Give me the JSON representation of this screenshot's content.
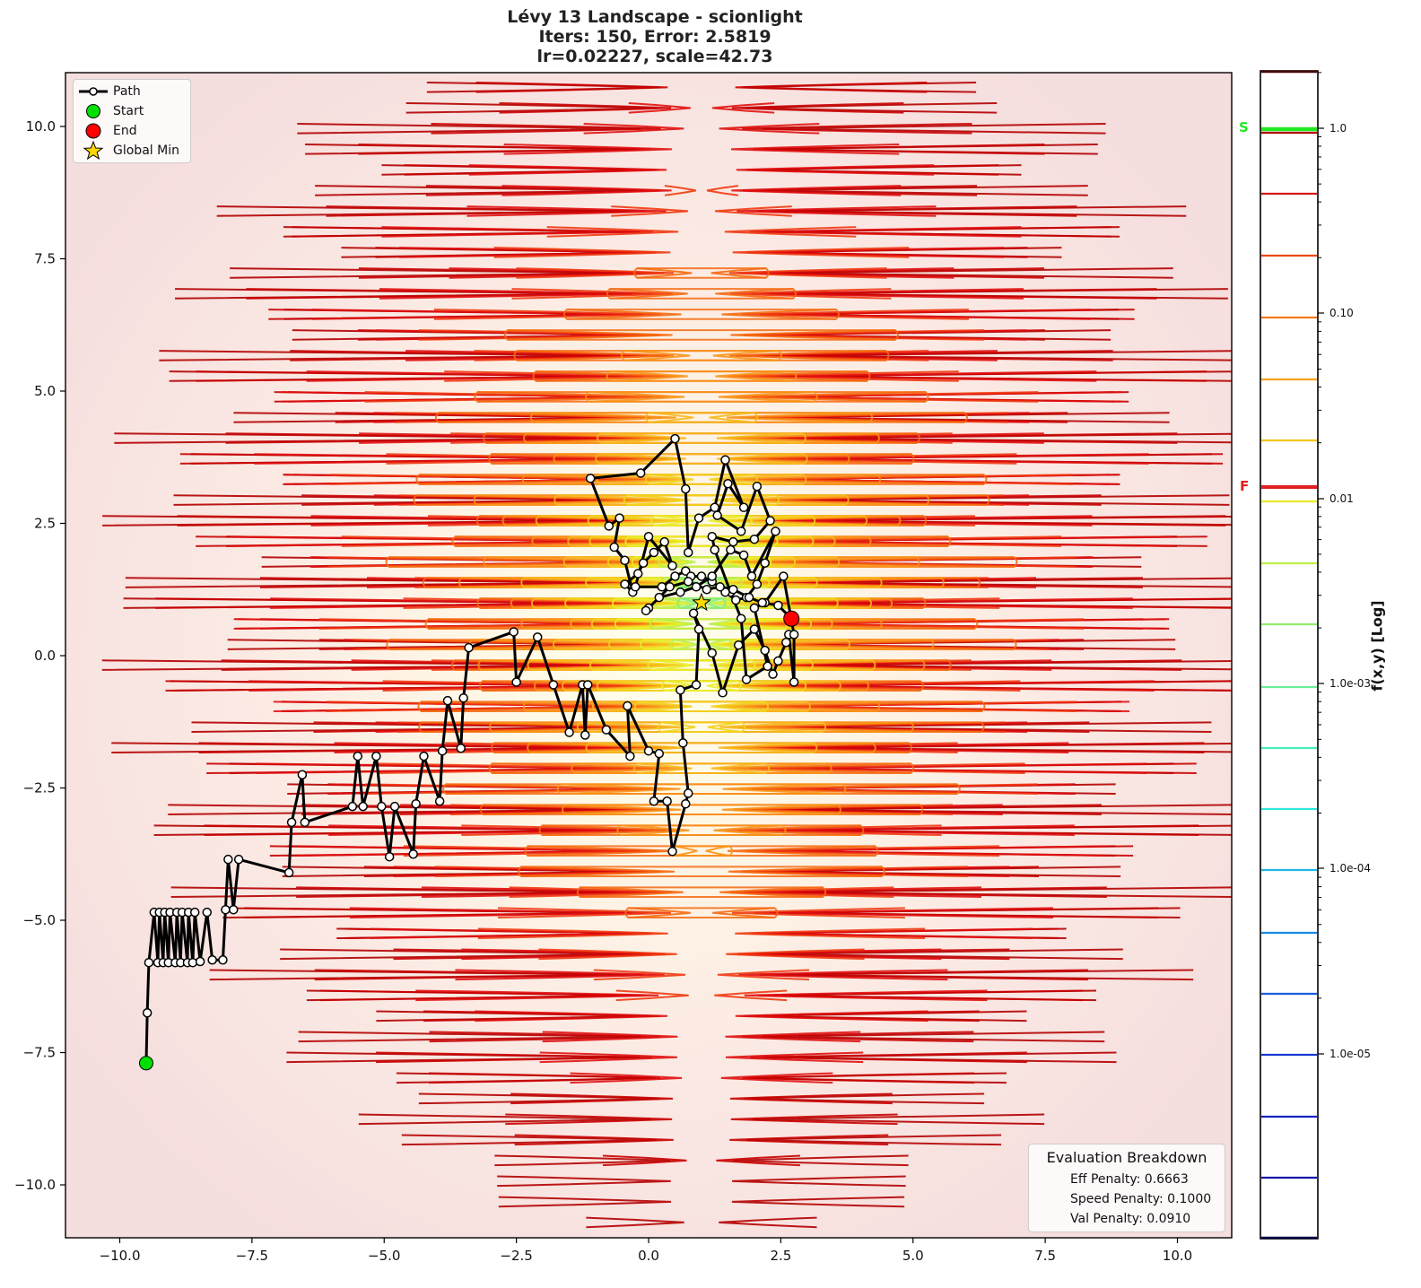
{
  "title": {
    "line1": "Lévy 13 Landscape - scionlight",
    "line2": "Iters: 150, Error: 2.5819",
    "line3": "lr=0.02227, scale=42.73"
  },
  "legend": {
    "items": [
      {
        "label": "Path",
        "symbol": "line-with-open-circle"
      },
      {
        "label": "Start",
        "symbol": "green-circle"
      },
      {
        "label": "End",
        "symbol": "red-circle"
      },
      {
        "label": "Global Min",
        "symbol": "yellow-star"
      }
    ]
  },
  "evaluation": {
    "header": "Evaluation Breakdown",
    "eff": "Eff Penalty: 0.6663",
    "speed": "Speed Penalty: 0.1000",
    "val": "Val Penalty: 0.0910"
  },
  "colorbar": {
    "label": "f(x,y) [Log]",
    "ticks": [
      "1.0",
      "0.10",
      "0.01",
      "1.0e-03",
      "1.0e-04",
      "1.0e-05"
    ],
    "start_marker": {
      "label": "S",
      "color": "#22e822"
    },
    "final_marker": {
      "label": "F",
      "color": "#e02020"
    }
  },
  "colors": {
    "path": "#000000",
    "start": "#00e000",
    "end": "#ff0000",
    "global_min": "#ffd700",
    "background_edge": "#f7e4e4",
    "background_center": "#ffffee"
  },
  "chart_data": {
    "type": "contour+line",
    "title": "Lévy 13 Landscape - scionlight\nIters: 150, Error: 2.5819\nlr=0.02227, scale=42.73",
    "xlabel": "",
    "ylabel": "",
    "xlim": [
      -11,
      11
    ],
    "ylim": [
      -11,
      11
    ],
    "xticks": [
      -10.0,
      -7.5,
      -5.0,
      -2.5,
      0.0,
      2.5,
      5.0,
      7.5,
      10.0
    ],
    "yticks": [
      -10.0,
      -7.5,
      -5.0,
      -2.5,
      0.0,
      2.5,
      5.0,
      7.5,
      10.0
    ],
    "colorbar_scale": "log",
    "colorbar_label": "f(x,y) [Log]",
    "colorbar_range": [
      1e-06,
      2.0
    ],
    "start_point": [
      -9.5,
      -7.7
    ],
    "end_point": [
      2.7,
      0.7
    ],
    "global_min": [
      1.0,
      1.0
    ],
    "start_value_on_colorbar": 1.0,
    "final_value_on_colorbar": 0.012,
    "iterations": 150,
    "error": 2.5819,
    "lr": 0.02227,
    "scale": 42.73,
    "penalties": {
      "eff": 0.6663,
      "speed": 0.1,
      "val": 0.091
    },
    "path": [
      [
        -9.5,
        -7.7
      ],
      [
        -9.48,
        -6.75
      ],
      [
        -9.45,
        -5.8
      ],
      [
        -9.35,
        -4.85
      ],
      [
        -9.28,
        -5.8
      ],
      [
        -9.25,
        -4.85
      ],
      [
        -9.18,
        -5.8
      ],
      [
        -9.15,
        -4.85
      ],
      [
        -9.08,
        -5.8
      ],
      [
        -9.05,
        -4.85
      ],
      [
        -8.95,
        -5.8
      ],
      [
        -8.92,
        -4.85
      ],
      [
        -8.85,
        -5.8
      ],
      [
        -8.82,
        -4.85
      ],
      [
        -8.72,
        -5.8
      ],
      [
        -8.7,
        -4.85
      ],
      [
        -8.62,
        -5.8
      ],
      [
        -8.58,
        -4.85
      ],
      [
        -8.48,
        -5.78
      ],
      [
        -8.35,
        -4.85
      ],
      [
        -8.25,
        -5.75
      ],
      [
        -8.05,
        -5.75
      ],
      [
        -8.0,
        -4.8
      ],
      [
        -7.95,
        -3.85
      ],
      [
        -7.85,
        -4.8
      ],
      [
        -7.75,
        -3.85
      ],
      [
        -6.8,
        -4.1
      ],
      [
        -6.75,
        -3.15
      ],
      [
        -6.55,
        -2.25
      ],
      [
        -6.5,
        -3.15
      ],
      [
        -5.6,
        -2.85
      ],
      [
        -5.5,
        -1.9
      ],
      [
        -5.4,
        -2.85
      ],
      [
        -5.15,
        -1.9
      ],
      [
        -5.05,
        -2.85
      ],
      [
        -4.9,
        -3.8
      ],
      [
        -4.8,
        -2.85
      ],
      [
        -4.45,
        -3.75
      ],
      [
        -4.4,
        -2.8
      ],
      [
        -4.25,
        -1.9
      ],
      [
        -3.95,
        -2.75
      ],
      [
        -3.9,
        -1.8
      ],
      [
        -3.8,
        -0.85
      ],
      [
        -3.55,
        -1.75
      ],
      [
        -3.5,
        -0.8
      ],
      [
        -3.4,
        0.15
      ],
      [
        -2.55,
        0.45
      ],
      [
        -2.5,
        -0.5
      ],
      [
        -2.1,
        0.35
      ],
      [
        -1.8,
        -0.55
      ],
      [
        -1.5,
        -1.45
      ],
      [
        -1.25,
        -0.55
      ],
      [
        -1.2,
        -1.5
      ],
      [
        -1.15,
        -0.55
      ],
      [
        -0.8,
        -1.4
      ],
      [
        -0.35,
        -1.9
      ],
      [
        -0.4,
        -0.95
      ],
      [
        0.0,
        -1.8
      ],
      [
        0.2,
        -1.85
      ],
      [
        0.1,
        -2.75
      ],
      [
        0.35,
        -2.75
      ],
      [
        0.45,
        -3.7
      ],
      [
        0.7,
        -2.8
      ],
      [
        0.75,
        -2.6
      ],
      [
        0.65,
        -1.65
      ],
      [
        0.6,
        -0.65
      ],
      [
        0.9,
        -0.55
      ],
      [
        0.95,
        0.5
      ],
      [
        0.85,
        0.8
      ],
      [
        1.2,
        0.05
      ],
      [
        1.4,
        -0.7
      ],
      [
        1.7,
        0.2
      ],
      [
        2.0,
        0.5
      ],
      [
        2.2,
        0.1
      ],
      [
        2.35,
        -0.35
      ],
      [
        2.45,
        -0.1
      ],
      [
        2.6,
        0.25
      ],
      [
        2.65,
        0.4
      ],
      [
        2.75,
        -0.5
      ],
      [
        2.75,
        0.4
      ],
      [
        2.55,
        1.5
      ],
      [
        2.2,
        1.0
      ],
      [
        2.0,
        0.9
      ],
      [
        2.25,
        -0.2
      ],
      [
        1.85,
        -0.45
      ],
      [
        1.75,
        0.7
      ],
      [
        1.55,
        1.2
      ],
      [
        1.25,
        2.0
      ],
      [
        1.2,
        2.25
      ],
      [
        1.6,
        2.15
      ],
      [
        2.0,
        2.2
      ],
      [
        2.3,
        2.55
      ],
      [
        2.05,
        3.2
      ],
      [
        1.75,
        2.35
      ],
      [
        1.3,
        2.65
      ],
      [
        1.5,
        3.25
      ],
      [
        1.8,
        2.8
      ],
      [
        1.45,
        3.7
      ],
      [
        1.25,
        2.8
      ],
      [
        0.95,
        2.6
      ],
      [
        0.75,
        1.95
      ],
      [
        0.7,
        3.15
      ],
      [
        0.5,
        4.1
      ],
      [
        -0.15,
        3.45
      ],
      [
        -1.1,
        3.35
      ],
      [
        -0.75,
        2.45
      ],
      [
        -0.55,
        2.6
      ],
      [
        -0.65,
        2.05
      ],
      [
        -0.45,
        1.8
      ],
      [
        -0.3,
        1.2
      ],
      [
        -0.45,
        1.35
      ],
      [
        -0.2,
        1.55
      ],
      [
        -0.1,
        1.75
      ],
      [
        0.1,
        1.95
      ],
      [
        0.3,
        2.15
      ],
      [
        0.45,
        1.7
      ],
      [
        0.0,
        2.25
      ],
      [
        -0.25,
        1.3
      ],
      [
        0.25,
        1.3
      ],
      [
        0.5,
        1.5
      ],
      [
        0.7,
        1.6
      ],
      [
        0.8,
        1.5
      ],
      [
        1.0,
        1.5
      ],
      [
        1.2,
        1.4
      ],
      [
        1.45,
        1.2
      ],
      [
        1.65,
        1.05
      ],
      [
        1.85,
        1.1
      ],
      [
        2.05,
        1.35
      ],
      [
        2.2,
        1.75
      ],
      [
        2.4,
        2.35
      ],
      [
        1.95,
        1.5
      ],
      [
        1.8,
        1.9
      ],
      [
        1.55,
        2.0
      ],
      [
        1.2,
        1.5
      ],
      [
        0.9,
        1.3
      ],
      [
        0.6,
        1.2
      ],
      [
        0.2,
        1.1
      ],
      [
        0.0,
        0.9
      ],
      [
        -0.05,
        0.85
      ],
      [
        0.4,
        1.3
      ],
      [
        0.75,
        1.4
      ],
      [
        1.1,
        1.25
      ],
      [
        1.35,
        1.3
      ],
      [
        1.6,
        1.25
      ],
      [
        1.9,
        1.1
      ],
      [
        2.15,
        1.0
      ],
      [
        2.45,
        0.95
      ],
      [
        2.7,
        0.7
      ]
    ]
  }
}
